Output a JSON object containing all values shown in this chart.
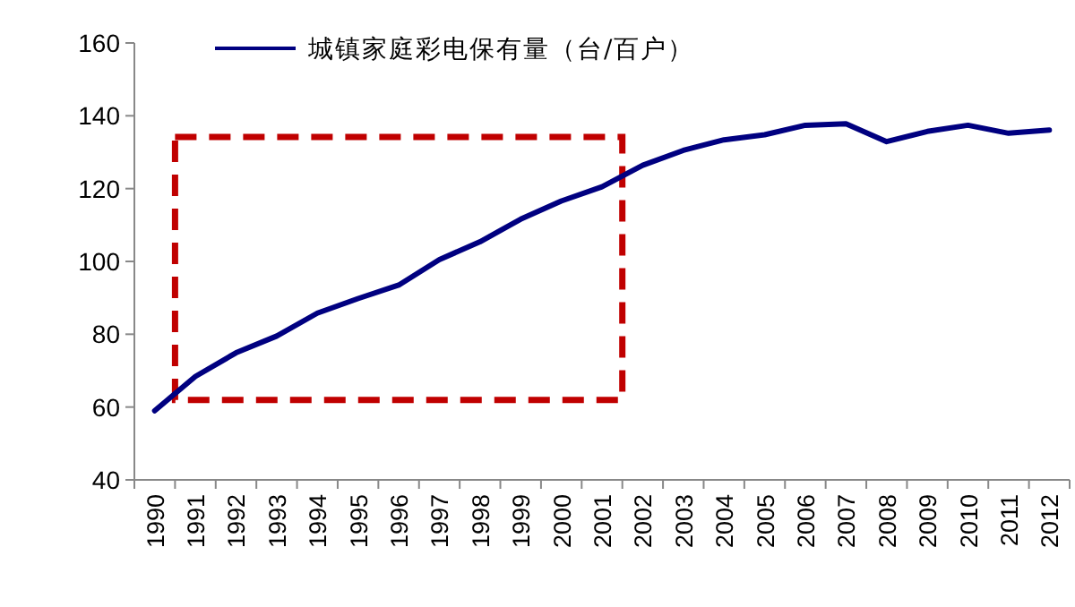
{
  "chart_data": {
    "type": "line",
    "categories": [
      "1990",
      "1991",
      "1992",
      "1993",
      "1994",
      "1995",
      "1996",
      "1997",
      "1998",
      "1999",
      "2000",
      "2001",
      "2002",
      "2003",
      "2004",
      "2005",
      "2006",
      "2007",
      "2008",
      "2009",
      "2010",
      "2011",
      "2012"
    ],
    "series": [
      {
        "name": "城镇家庭彩电保有量（台/百户）",
        "color": "#000080",
        "values": [
          59.0,
          68.4,
          74.9,
          79.5,
          85.8,
          89.8,
          93.5,
          100.5,
          105.4,
          111.6,
          116.6,
          120.5,
          126.4,
          130.5,
          133.4,
          134.8,
          137.4,
          137.8,
          132.9,
          135.7,
          137.4,
          135.2,
          136.1
        ]
      }
    ],
    "ylim": [
      40,
      160
    ],
    "yticks": [
      40,
      60,
      80,
      100,
      120,
      140,
      160
    ],
    "legend": "top left",
    "grid": false,
    "marker": "none",
    "line_style": "solid"
  }
}
